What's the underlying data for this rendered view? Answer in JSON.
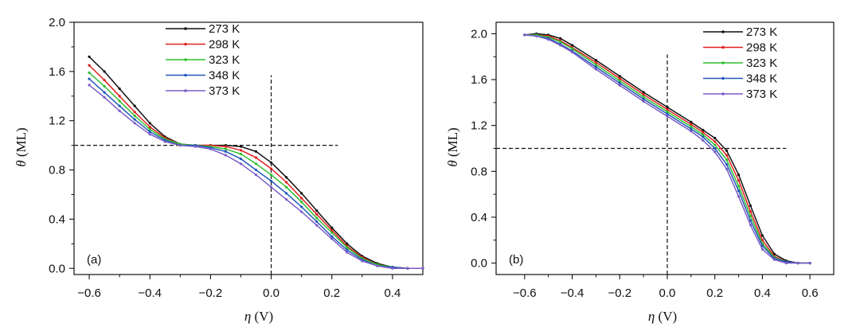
{
  "chart_data": [
    {
      "type": "line",
      "panel_label": "(a)",
      "xlabel_symbol": "η",
      "xlabel_unit": " (V)",
      "ylabel_symbol": "θ",
      "ylabel_unit": " (ML)",
      "xlim": [
        -0.65,
        0.5
      ],
      "ylim": [
        -0.05,
        2.0
      ],
      "xticks": [
        -0.6,
        -0.4,
        -0.2,
        0.0,
        0.2,
        0.4
      ],
      "xtick_labels": [
        "−0.6",
        "−0.4",
        "−0.2",
        "0.0",
        "0.2",
        "0.4"
      ],
      "yticks": [
        0.0,
        0.4,
        0.8,
        1.2,
        1.6,
        2.0
      ],
      "ytick_labels": [
        "0.0",
        "0.4",
        "0.8",
        "1.2",
        "1.6",
        "2.0"
      ],
      "legend_position": "top-center",
      "reference_lines": {
        "hline": {
          "y": 1.0,
          "x_range": [
            -0.65,
            0.22
          ]
        },
        "vline": {
          "x": 0.0,
          "y_range": [
            -0.05,
            1.57
          ]
        }
      },
      "series": [
        {
          "name": "273 K",
          "color": "#111111",
          "x": [
            -0.6,
            -0.55,
            -0.5,
            -0.45,
            -0.4,
            -0.35,
            -0.3,
            -0.25,
            -0.2,
            -0.15,
            -0.1,
            -0.05,
            0.0,
            0.05,
            0.1,
            0.15,
            0.2,
            0.25,
            0.3,
            0.35,
            0.4,
            0.45,
            0.5
          ],
          "y": [
            1.72,
            1.6,
            1.46,
            1.32,
            1.18,
            1.07,
            1.01,
            1.0,
            1.0,
            1.0,
            0.99,
            0.95,
            0.86,
            0.74,
            0.61,
            0.47,
            0.33,
            0.2,
            0.1,
            0.04,
            0.01,
            0.0,
            0.0
          ]
        },
        {
          "name": "298 K",
          "color": "#e02020",
          "x": [
            -0.6,
            -0.55,
            -0.5,
            -0.45,
            -0.4,
            -0.35,
            -0.3,
            -0.25,
            -0.2,
            -0.15,
            -0.1,
            -0.05,
            0.0,
            0.05,
            0.1,
            0.15,
            0.2,
            0.25,
            0.3,
            0.35,
            0.4,
            0.45,
            0.5
          ],
          "y": [
            1.65,
            1.53,
            1.4,
            1.27,
            1.15,
            1.06,
            1.01,
            1.0,
            1.0,
            0.99,
            0.96,
            0.9,
            0.81,
            0.7,
            0.57,
            0.44,
            0.31,
            0.18,
            0.09,
            0.03,
            0.01,
            0.0,
            0.0
          ]
        },
        {
          "name": "323 K",
          "color": "#2fbf2f",
          "x": [
            -0.6,
            -0.55,
            -0.5,
            -0.45,
            -0.4,
            -0.35,
            -0.3,
            -0.25,
            -0.2,
            -0.15,
            -0.1,
            -0.05,
            0.0,
            0.05,
            0.1,
            0.15,
            0.2,
            0.25,
            0.3,
            0.35,
            0.4,
            0.45,
            0.5
          ],
          "y": [
            1.59,
            1.48,
            1.36,
            1.24,
            1.13,
            1.05,
            1.01,
            1.0,
            0.99,
            0.97,
            0.93,
            0.85,
            0.76,
            0.66,
            0.54,
            0.41,
            0.29,
            0.17,
            0.08,
            0.03,
            0.01,
            0.0,
            0.0
          ]
        },
        {
          "name": "348 K",
          "color": "#2458b8",
          "x": [
            -0.6,
            -0.55,
            -0.5,
            -0.45,
            -0.4,
            -0.35,
            -0.3,
            -0.25,
            -0.2,
            -0.15,
            -0.1,
            -0.05,
            0.0,
            0.05,
            0.1,
            0.15,
            0.2,
            0.25,
            0.3,
            0.35,
            0.4,
            0.45,
            0.5
          ],
          "y": [
            1.54,
            1.43,
            1.32,
            1.21,
            1.11,
            1.04,
            1.0,
            1.0,
            0.98,
            0.95,
            0.89,
            0.8,
            0.71,
            0.61,
            0.5,
            0.38,
            0.26,
            0.15,
            0.07,
            0.02,
            0.01,
            0.0,
            0.0
          ]
        },
        {
          "name": "373 K",
          "color": "#7b5cc8",
          "x": [
            -0.6,
            -0.55,
            -0.5,
            -0.45,
            -0.4,
            -0.35,
            -0.3,
            -0.25,
            -0.2,
            -0.15,
            -0.1,
            -0.05,
            0.0,
            0.05,
            0.1,
            0.15,
            0.2,
            0.25,
            0.3,
            0.35,
            0.4,
            0.45,
            0.5
          ],
          "y": [
            1.49,
            1.39,
            1.28,
            1.18,
            1.09,
            1.03,
            1.0,
            0.99,
            0.97,
            0.92,
            0.85,
            0.76,
            0.66,
            0.56,
            0.46,
            0.35,
            0.24,
            0.13,
            0.06,
            0.02,
            0.0,
            0.0,
            0.0
          ]
        }
      ]
    },
    {
      "type": "line",
      "panel_label": "(b)",
      "xlabel_symbol": "η",
      "xlabel_unit": " (V)",
      "ylabel_symbol": "θ",
      "ylabel_unit": " (ML)",
      "xlim": [
        -0.72,
        0.7
      ],
      "ylim": [
        -0.1,
        2.1
      ],
      "xticks": [
        -0.6,
        -0.4,
        -0.2,
        0.0,
        0.2,
        0.4,
        0.6
      ],
      "xtick_labels": [
        "−0.6",
        "−0.4",
        "−0.2",
        "0.0",
        "0.2",
        "0.4",
        "0.6"
      ],
      "yticks": [
        0.0,
        0.4,
        0.8,
        1.2,
        1.6,
        2.0
      ],
      "ytick_labels": [
        "0.0",
        "0.4",
        "0.8",
        "1.2",
        "1.6",
        "2.0"
      ],
      "legend_position": "top-right",
      "reference_lines": {
        "hline": {
          "y": 1.0,
          "x_range": [
            -0.72,
            0.5
          ]
        },
        "vline": {
          "x": 0.0,
          "y_range": [
            -0.1,
            1.82
          ]
        }
      },
      "series": [
        {
          "name": "273 K",
          "color": "#111111",
          "x": [
            -0.6,
            -0.55,
            -0.5,
            -0.45,
            -0.4,
            -0.3,
            -0.2,
            -0.1,
            0.0,
            0.1,
            0.15,
            0.2,
            0.25,
            0.3,
            0.35,
            0.4,
            0.45,
            0.5,
            0.55,
            0.6
          ],
          "y": [
            1.99,
            2.0,
            1.99,
            1.96,
            1.9,
            1.77,
            1.63,
            1.49,
            1.36,
            1.23,
            1.16,
            1.09,
            0.98,
            0.77,
            0.5,
            0.24,
            0.08,
            0.02,
            0.0,
            0.0
          ]
        },
        {
          "name": "298 K",
          "color": "#e02020",
          "x": [
            -0.6,
            -0.55,
            -0.5,
            -0.45,
            -0.4,
            -0.3,
            -0.2,
            -0.1,
            0.0,
            0.1,
            0.15,
            0.2,
            0.25,
            0.3,
            0.35,
            0.4,
            0.45,
            0.5,
            0.55,
            0.6
          ],
          "y": [
            1.99,
            1.99,
            1.98,
            1.94,
            1.88,
            1.75,
            1.61,
            1.47,
            1.34,
            1.21,
            1.14,
            1.06,
            0.94,
            0.72,
            0.45,
            0.2,
            0.06,
            0.01,
            0.0,
            0.0
          ]
        },
        {
          "name": "323 K",
          "color": "#2fbf2f",
          "x": [
            -0.6,
            -0.55,
            -0.5,
            -0.45,
            -0.4,
            -0.3,
            -0.2,
            -0.1,
            0.0,
            0.1,
            0.15,
            0.2,
            0.25,
            0.3,
            0.35,
            0.4,
            0.45,
            0.5,
            0.55,
            0.6
          ],
          "y": [
            1.99,
            1.99,
            1.97,
            1.93,
            1.87,
            1.73,
            1.59,
            1.45,
            1.32,
            1.19,
            1.12,
            1.03,
            0.9,
            0.67,
            0.41,
            0.17,
            0.05,
            0.01,
            0.0,
            0.0
          ]
        },
        {
          "name": "348 K",
          "color": "#2458b8",
          "x": [
            -0.6,
            -0.55,
            -0.5,
            -0.45,
            -0.4,
            -0.3,
            -0.2,
            -0.1,
            0.0,
            0.1,
            0.15,
            0.2,
            0.25,
            0.3,
            0.35,
            0.4,
            0.45,
            0.5,
            0.55,
            0.6
          ],
          "y": [
            1.99,
            1.98,
            1.96,
            1.91,
            1.85,
            1.71,
            1.57,
            1.43,
            1.3,
            1.17,
            1.1,
            1.0,
            0.86,
            0.63,
            0.37,
            0.15,
            0.04,
            0.01,
            0.0,
            0.0
          ]
        },
        {
          "name": "373 K",
          "color": "#7b5cc8",
          "x": [
            -0.6,
            -0.55,
            -0.5,
            -0.45,
            -0.4,
            -0.3,
            -0.2,
            -0.1,
            0.0,
            0.1,
            0.15,
            0.2,
            0.25,
            0.3,
            0.35,
            0.4,
            0.45,
            0.5,
            0.55,
            0.6
          ],
          "y": [
            1.99,
            1.98,
            1.95,
            1.9,
            1.84,
            1.69,
            1.55,
            1.41,
            1.28,
            1.15,
            1.07,
            0.97,
            0.82,
            0.58,
            0.33,
            0.12,
            0.03,
            0.0,
            0.0,
            0.0
          ]
        }
      ]
    }
  ]
}
